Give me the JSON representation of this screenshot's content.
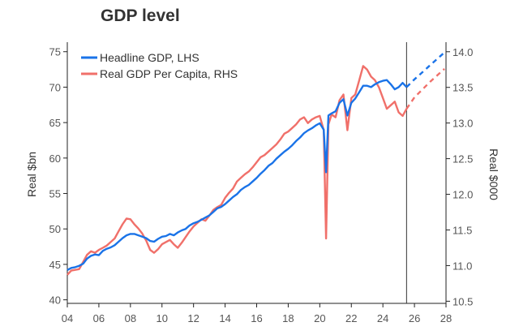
{
  "chart_data": {
    "type": "line",
    "title": "GDP level",
    "xlabel": "",
    "ylabel_left": "Real $bn",
    "ylabel_right": "Real $000",
    "x_ticks": [
      "04",
      "06",
      "08",
      "10",
      "12",
      "14",
      "16",
      "18",
      "20",
      "22",
      "24",
      "26",
      "28"
    ],
    "x_range": [
      2004,
      2028
    ],
    "y_left_ticks": [
      "40",
      "45",
      "50",
      "55",
      "60",
      "65",
      "70",
      "75"
    ],
    "y_left_range": [
      39.5,
      76
    ],
    "y_right_ticks": [
      "10.5",
      "11.0",
      "11.5",
      "12.0",
      "12.5",
      "13.0",
      "13.5",
      "14.0"
    ],
    "y_right_range": [
      10.47,
      14.1
    ],
    "forecast_start": 2025.5,
    "legend": {
      "position": "top-left"
    },
    "series": [
      {
        "name": "Headline GDP, LHS",
        "color": "#1a73e8",
        "axis": "left",
        "points": [
          [
            2004.0,
            44.2
          ],
          [
            2004.25,
            44.5
          ],
          [
            2004.5,
            44.6
          ],
          [
            2004.75,
            44.8
          ],
          [
            2005.0,
            45.1
          ],
          [
            2005.25,
            45.8
          ],
          [
            2005.5,
            46.2
          ],
          [
            2005.75,
            46.4
          ],
          [
            2006.0,
            46.3
          ],
          [
            2006.25,
            46.9
          ],
          [
            2006.5,
            47.2
          ],
          [
            2006.75,
            47.4
          ],
          [
            2007.0,
            47.7
          ],
          [
            2007.25,
            48.2
          ],
          [
            2007.5,
            48.7
          ],
          [
            2007.75,
            49.1
          ],
          [
            2008.0,
            49.3
          ],
          [
            2008.25,
            49.3
          ],
          [
            2008.5,
            49.1
          ],
          [
            2008.75,
            48.9
          ],
          [
            2009.0,
            48.7
          ],
          [
            2009.25,
            48.3
          ],
          [
            2009.5,
            48.2
          ],
          [
            2009.75,
            48.6
          ],
          [
            2010.0,
            48.9
          ],
          [
            2010.25,
            49.0
          ],
          [
            2010.5,
            49.3
          ],
          [
            2010.75,
            49.1
          ],
          [
            2011.0,
            49.5
          ],
          [
            2011.25,
            49.8
          ],
          [
            2011.5,
            50.0
          ],
          [
            2011.75,
            50.5
          ],
          [
            2012.0,
            50.8
          ],
          [
            2012.25,
            51.0
          ],
          [
            2012.5,
            51.3
          ],
          [
            2012.75,
            51.6
          ],
          [
            2013.0,
            51.9
          ],
          [
            2013.25,
            52.4
          ],
          [
            2013.5,
            52.9
          ],
          [
            2013.75,
            53.1
          ],
          [
            2014.0,
            53.5
          ],
          [
            2014.25,
            54.0
          ],
          [
            2014.5,
            54.5
          ],
          [
            2014.75,
            54.9
          ],
          [
            2015.0,
            55.5
          ],
          [
            2015.25,
            55.9
          ],
          [
            2015.5,
            56.2
          ],
          [
            2015.75,
            56.7
          ],
          [
            2016.0,
            57.2
          ],
          [
            2016.25,
            57.8
          ],
          [
            2016.5,
            58.3
          ],
          [
            2016.75,
            58.9
          ],
          [
            2017.0,
            59.3
          ],
          [
            2017.25,
            59.9
          ],
          [
            2017.5,
            60.4
          ],
          [
            2017.75,
            60.9
          ],
          [
            2018.0,
            61.3
          ],
          [
            2018.25,
            61.8
          ],
          [
            2018.5,
            62.4
          ],
          [
            2018.75,
            62.9
          ],
          [
            2019.0,
            63.5
          ],
          [
            2019.25,
            63.9
          ],
          [
            2019.5,
            64.2
          ],
          [
            2019.75,
            64.6
          ],
          [
            2020.0,
            64.9
          ],
          [
            2020.25,
            64.0
          ],
          [
            2020.4,
            58.0
          ],
          [
            2020.55,
            66.0
          ],
          [
            2020.75,
            66.3
          ],
          [
            2021.0,
            66.6
          ],
          [
            2021.25,
            67.8
          ],
          [
            2021.5,
            68.3
          ],
          [
            2021.75,
            66.0
          ],
          [
            2022.0,
            67.8
          ],
          [
            2022.25,
            68.4
          ],
          [
            2022.5,
            69.3
          ],
          [
            2022.75,
            70.2
          ],
          [
            2023.0,
            70.2
          ],
          [
            2023.25,
            70.0
          ],
          [
            2023.5,
            70.4
          ],
          [
            2023.75,
            70.7
          ],
          [
            2024.0,
            70.9
          ],
          [
            2024.25,
            71.0
          ],
          [
            2024.5,
            70.4
          ],
          [
            2024.75,
            69.7
          ],
          [
            2025.0,
            70.0
          ],
          [
            2025.25,
            70.6
          ],
          [
            2025.5,
            70.0
          ]
        ],
        "forecast": [
          [
            2025.5,
            70.0
          ],
          [
            2026.0,
            71.1
          ],
          [
            2026.5,
            72.1
          ],
          [
            2027.0,
            73.1
          ],
          [
            2027.5,
            74.1
          ],
          [
            2027.9,
            74.9
          ]
        ]
      },
      {
        "name": "Real GDP Per Capita, RHS",
        "color": "#f0706a",
        "axis": "right",
        "points": [
          [
            2004.0,
            10.87
          ],
          [
            2004.25,
            10.93
          ],
          [
            2004.5,
            10.94
          ],
          [
            2004.75,
            10.95
          ],
          [
            2005.0,
            11.05
          ],
          [
            2005.25,
            11.15
          ],
          [
            2005.5,
            11.2
          ],
          [
            2005.75,
            11.18
          ],
          [
            2006.0,
            11.22
          ],
          [
            2006.25,
            11.25
          ],
          [
            2006.5,
            11.28
          ],
          [
            2006.75,
            11.33
          ],
          [
            2007.0,
            11.38
          ],
          [
            2007.25,
            11.48
          ],
          [
            2007.5,
            11.58
          ],
          [
            2007.75,
            11.66
          ],
          [
            2008.0,
            11.65
          ],
          [
            2008.25,
            11.58
          ],
          [
            2008.5,
            11.52
          ],
          [
            2008.75,
            11.45
          ],
          [
            2009.0,
            11.35
          ],
          [
            2009.25,
            11.22
          ],
          [
            2009.5,
            11.18
          ],
          [
            2009.75,
            11.23
          ],
          [
            2010.0,
            11.3
          ],
          [
            2010.25,
            11.33
          ],
          [
            2010.5,
            11.36
          ],
          [
            2010.75,
            11.3
          ],
          [
            2011.0,
            11.25
          ],
          [
            2011.25,
            11.32
          ],
          [
            2011.5,
            11.4
          ],
          [
            2011.75,
            11.48
          ],
          [
            2012.0,
            11.55
          ],
          [
            2012.25,
            11.6
          ],
          [
            2012.5,
            11.65
          ],
          [
            2012.75,
            11.63
          ],
          [
            2013.0,
            11.7
          ],
          [
            2013.25,
            11.78
          ],
          [
            2013.5,
            11.82
          ],
          [
            2013.75,
            11.85
          ],
          [
            2014.0,
            11.95
          ],
          [
            2014.25,
            12.02
          ],
          [
            2014.5,
            12.08
          ],
          [
            2014.75,
            12.18
          ],
          [
            2015.0,
            12.23
          ],
          [
            2015.25,
            12.28
          ],
          [
            2015.5,
            12.32
          ],
          [
            2015.75,
            12.38
          ],
          [
            2016.0,
            12.45
          ],
          [
            2016.25,
            12.52
          ],
          [
            2016.5,
            12.55
          ],
          [
            2016.75,
            12.6
          ],
          [
            2017.0,
            12.65
          ],
          [
            2017.25,
            12.7
          ],
          [
            2017.5,
            12.77
          ],
          [
            2017.75,
            12.85
          ],
          [
            2018.0,
            12.88
          ],
          [
            2018.25,
            12.93
          ],
          [
            2018.5,
            12.98
          ],
          [
            2018.75,
            13.05
          ],
          [
            2019.0,
            13.08
          ],
          [
            2019.25,
            13.0
          ],
          [
            2019.5,
            13.05
          ],
          [
            2019.75,
            13.08
          ],
          [
            2020.0,
            13.1
          ],
          [
            2020.25,
            12.9
          ],
          [
            2020.4,
            11.38
          ],
          [
            2020.55,
            12.98
          ],
          [
            2020.75,
            13.12
          ],
          [
            2021.0,
            13.08
          ],
          [
            2021.25,
            13.32
          ],
          [
            2021.5,
            13.4
          ],
          [
            2021.75,
            12.9
          ],
          [
            2022.0,
            13.35
          ],
          [
            2022.25,
            13.4
          ],
          [
            2022.5,
            13.6
          ],
          [
            2022.75,
            13.8
          ],
          [
            2023.0,
            13.75
          ],
          [
            2023.25,
            13.65
          ],
          [
            2023.5,
            13.6
          ],
          [
            2023.75,
            13.5
          ],
          [
            2024.0,
            13.35
          ],
          [
            2024.25,
            13.2
          ],
          [
            2024.5,
            13.25
          ],
          [
            2024.75,
            13.3
          ],
          [
            2025.0,
            13.15
          ],
          [
            2025.25,
            13.1
          ],
          [
            2025.5,
            13.2
          ]
        ],
        "forecast": [
          [
            2025.5,
            13.2
          ],
          [
            2026.0,
            13.36
          ],
          [
            2026.5,
            13.47
          ],
          [
            2027.0,
            13.58
          ],
          [
            2027.5,
            13.68
          ],
          [
            2027.9,
            13.76
          ]
        ]
      }
    ]
  }
}
